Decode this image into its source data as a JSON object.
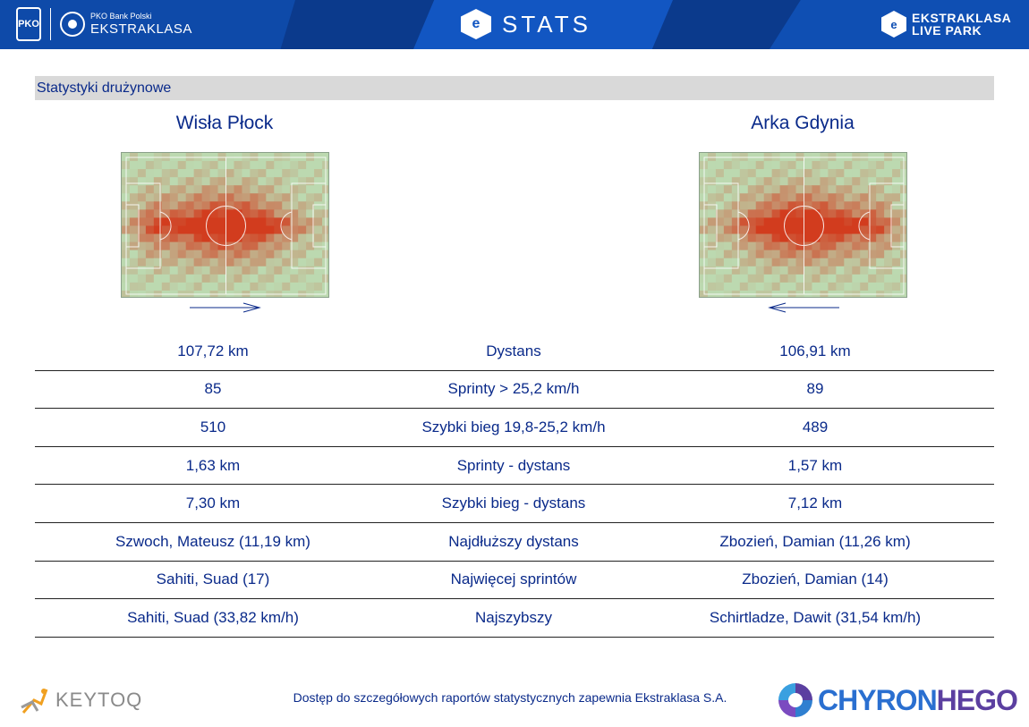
{
  "header": {
    "pko_logo_text": "PKO",
    "brand_small": "PKO Bank Polski",
    "brand_big": "EKSTRAKLASA",
    "center_title": "STATS",
    "right_line1": "EKSTRAKLASA",
    "right_line2": "LIVE PARK"
  },
  "section": {
    "title": "Statystyki drużynowe"
  },
  "teams": {
    "left": "Wisła Płock",
    "right": "Arka Gdynia"
  },
  "stats": [
    {
      "left": "107,72 km",
      "label": "Dystans",
      "right": "106,91 km"
    },
    {
      "left": "85",
      "label": "Sprinty > 25,2 km/h",
      "right": "89"
    },
    {
      "left": "510",
      "label": "Szybki bieg 19,8-25,2 km/h",
      "right": "489"
    },
    {
      "left": "1,63 km",
      "label": "Sprinty - dystans",
      "right": "1,57 km"
    },
    {
      "left": "7,30 km",
      "label": "Szybki bieg - dystans",
      "right": "7,12 km"
    },
    {
      "left": "Szwoch, Mateusz (11,19 km)",
      "label": "Najdłuższy dystans",
      "right": "Zbozień, Damian (11,26 km)"
    },
    {
      "left": "Sahiti, Suad (17)",
      "label": "Najwięcej sprintów",
      "right": "Zbozień, Damian (14)"
    },
    {
      "left": "Sahiti, Suad (33,82 km/h)",
      "label": "Najszybszy",
      "right": "Schirtladze, Dawit (31,54 km/h)"
    }
  ],
  "footer": {
    "keytoq": "KEYTOQ",
    "note": "Dostęp do szczegółowych raportów statystycznych zapewnia Ekstraklasa S.A.",
    "chyron_part1": "CHYRON",
    "chyron_part2": "HEGO"
  },
  "colors": {
    "header_bg": "#0b3a8c",
    "text_blue": "#0a2a8a",
    "pitch_green": "#bcd9b0",
    "heat_red": "#d03a1a"
  },
  "icons": {
    "pko": "pko-logo-icon",
    "ekstraklasa": "ekstraklasa-ball-icon",
    "stats": "ekstraklasa-e-icon",
    "live_park": "live-park-e-icon",
    "keytoq": "keytoq-logo-icon",
    "chyron": "chyronhego-logo-icon",
    "direction_left_team": "arrow-right-icon",
    "direction_right_team": "arrow-left-icon"
  }
}
